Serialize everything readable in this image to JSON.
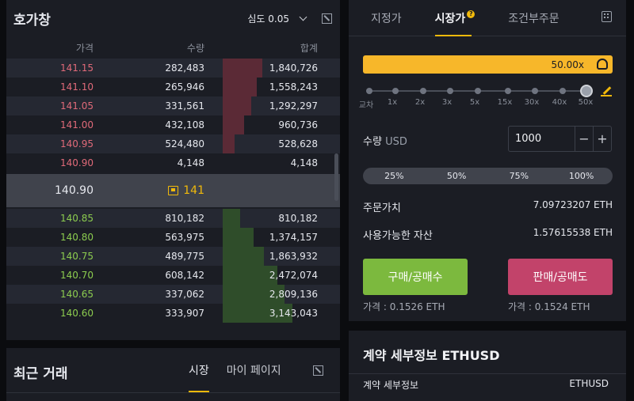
{
  "orderbook": {
    "title": "호가창",
    "depth_label": "심도 0.05",
    "columns": {
      "price": "가격",
      "qty": "수량",
      "total": "합계"
    },
    "asks": [
      {
        "price": "141.15",
        "qty": "282,483",
        "total": "1,840,726",
        "fill": 0.36
      },
      {
        "price": "141.10",
        "qty": "265,946",
        "total": "1,558,243",
        "fill": 0.31
      },
      {
        "price": "141.05",
        "qty": "331,561",
        "total": "1,292,297",
        "fill": 0.26
      },
      {
        "price": "141.00",
        "qty": "432,108",
        "total": "960,736",
        "fill": 0.19
      },
      {
        "price": "140.95",
        "qty": "524,480",
        "total": "528,628",
        "fill": 0.11
      },
      {
        "price": "140.90",
        "qty": "4,148",
        "total": "4,148",
        "fill": 0.0
      }
    ],
    "mid": {
      "price": "140.90",
      "mark": "141"
    },
    "bids": [
      {
        "price": "140.85",
        "qty": "810,182",
        "total": "810,182",
        "fill": 0.16
      },
      {
        "price": "140.80",
        "qty": "563,975",
        "total": "1,374,157",
        "fill": 0.28
      },
      {
        "price": "140.75",
        "qty": "489,775",
        "total": "1,863,932",
        "fill": 0.37
      },
      {
        "price": "140.70",
        "qty": "608,142",
        "total": "2,472,074",
        "fill": 0.49
      },
      {
        "price": "140.65",
        "qty": "337,062",
        "total": "2,809,136",
        "fill": 0.56
      },
      {
        "price": "140.60",
        "qty": "333,907",
        "total": "3,143,043",
        "fill": 0.63
      }
    ]
  },
  "recent_trades": {
    "title": "최근 거래",
    "tabs": [
      {
        "label": "시장",
        "active": true
      },
      {
        "label": "마이 페이지",
        "active": false
      }
    ]
  },
  "order_form": {
    "tabs": [
      {
        "label": "지정가",
        "active": false
      },
      {
        "label": "시장가",
        "active": true
      },
      {
        "label": "조건부주문",
        "active": false
      }
    ],
    "leverage": "50.00x",
    "leverage_ticks": [
      "교차",
      "1x",
      "2x",
      "3x",
      "5x",
      "15x",
      "30x",
      "40x",
      "50x"
    ],
    "quantity_label": "수량",
    "quantity_unit": "USD",
    "quantity_value": "1000",
    "percent_options": [
      "25%",
      "50%",
      "75%",
      "100%"
    ],
    "order_value_label": "주문가치",
    "order_value": "7.09723207 ETH",
    "available_label": "사용가능한 자산",
    "available_value": "1.57615538 ETH",
    "buy_label": "구매/공매수",
    "sell_label": "판매/공매도",
    "buy_price": "가격 : 0.1526 ETH",
    "sell_price": "가격 : 0.1524 ETH"
  },
  "contract": {
    "title": "계약 세부정보 ETHUSD",
    "row_label": "계약 세부정보",
    "row_value": "ETHUSD"
  },
  "colors": {
    "accent": "#f0b90b",
    "buy": "#7cb93e",
    "sell": "#c2436a",
    "ask_text": "#e06a79",
    "bid_text": "#8ccc4f"
  }
}
